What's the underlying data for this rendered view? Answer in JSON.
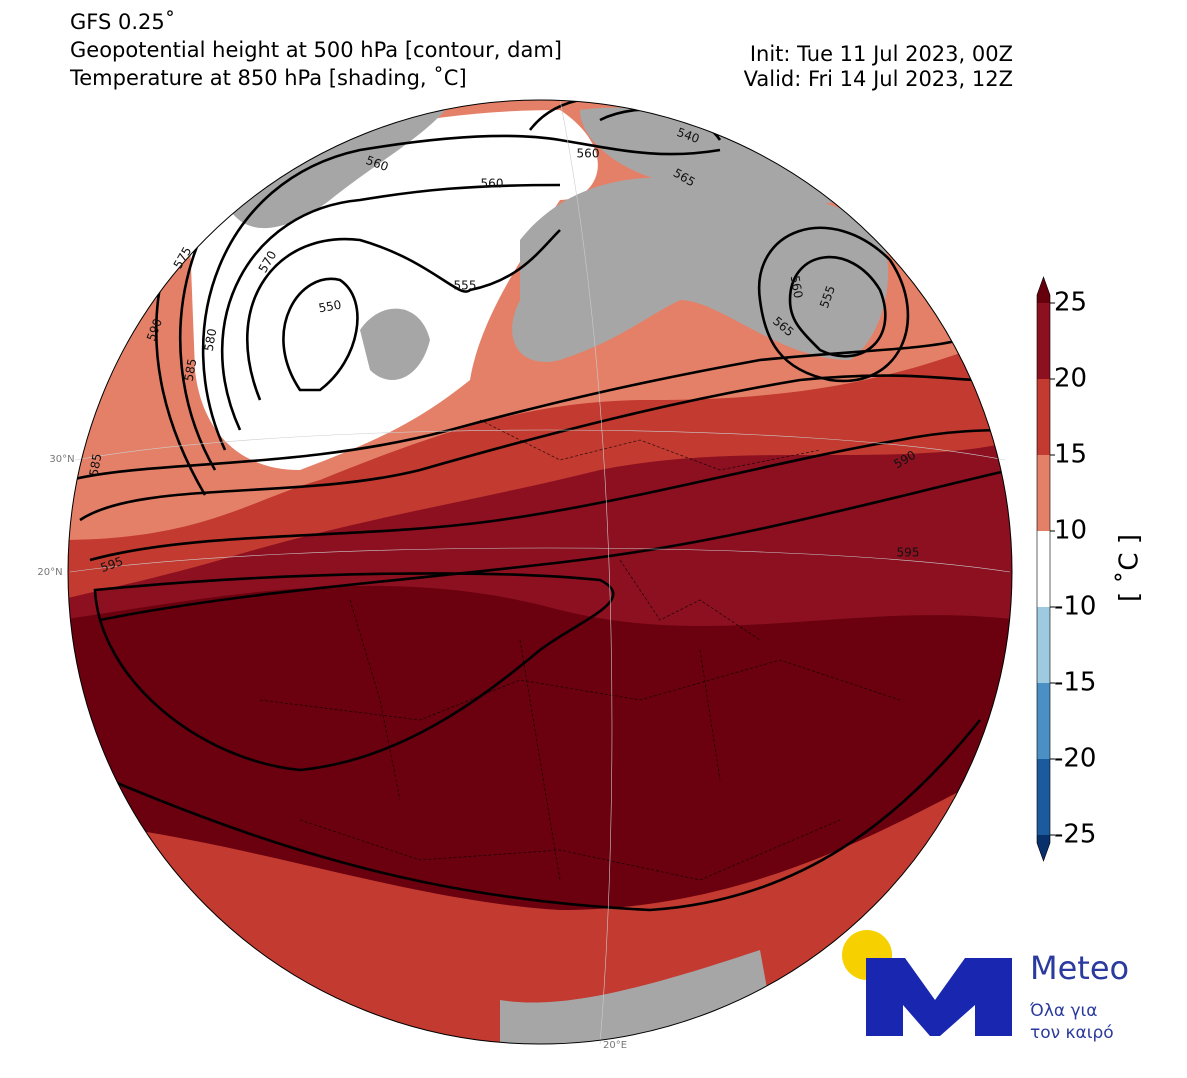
{
  "header": {
    "model": "GFS 0.25˚",
    "line2": "Geopotential height at 500 hPa [contour, dam]",
    "line3": "Temperature at 850 hPa [shading, ˚C]",
    "init": "Init: Tue 11 Jul 2023, 00Z",
    "valid": "Valid: Fri 14 Jul 2023, 12Z"
  },
  "map": {
    "contour_labels": [
      550,
      555,
      560,
      560,
      560,
      565,
      570,
      575,
      580,
      585,
      590,
      540,
      555,
      560,
      565,
      595,
      595,
      590,
      585
    ],
    "graticule_labels": [
      "30°N",
      "20°N",
      "20°E"
    ]
  },
  "colorbar": {
    "label": "[ ˚C ]",
    "ticks": [
      -25,
      -20,
      -15,
      -10,
      10,
      15,
      20,
      25
    ],
    "colors": [
      "#08306b",
      "#1c5a9e",
      "#4a90c4",
      "#9ecae1",
      "#ffffff",
      "#e58068",
      "#c23a30",
      "#8c1020",
      "#67000d"
    ]
  },
  "logo": {
    "name": "Meteo",
    "tagline1": "Όλα για",
    "tagline2": "τον καιρό"
  }
}
